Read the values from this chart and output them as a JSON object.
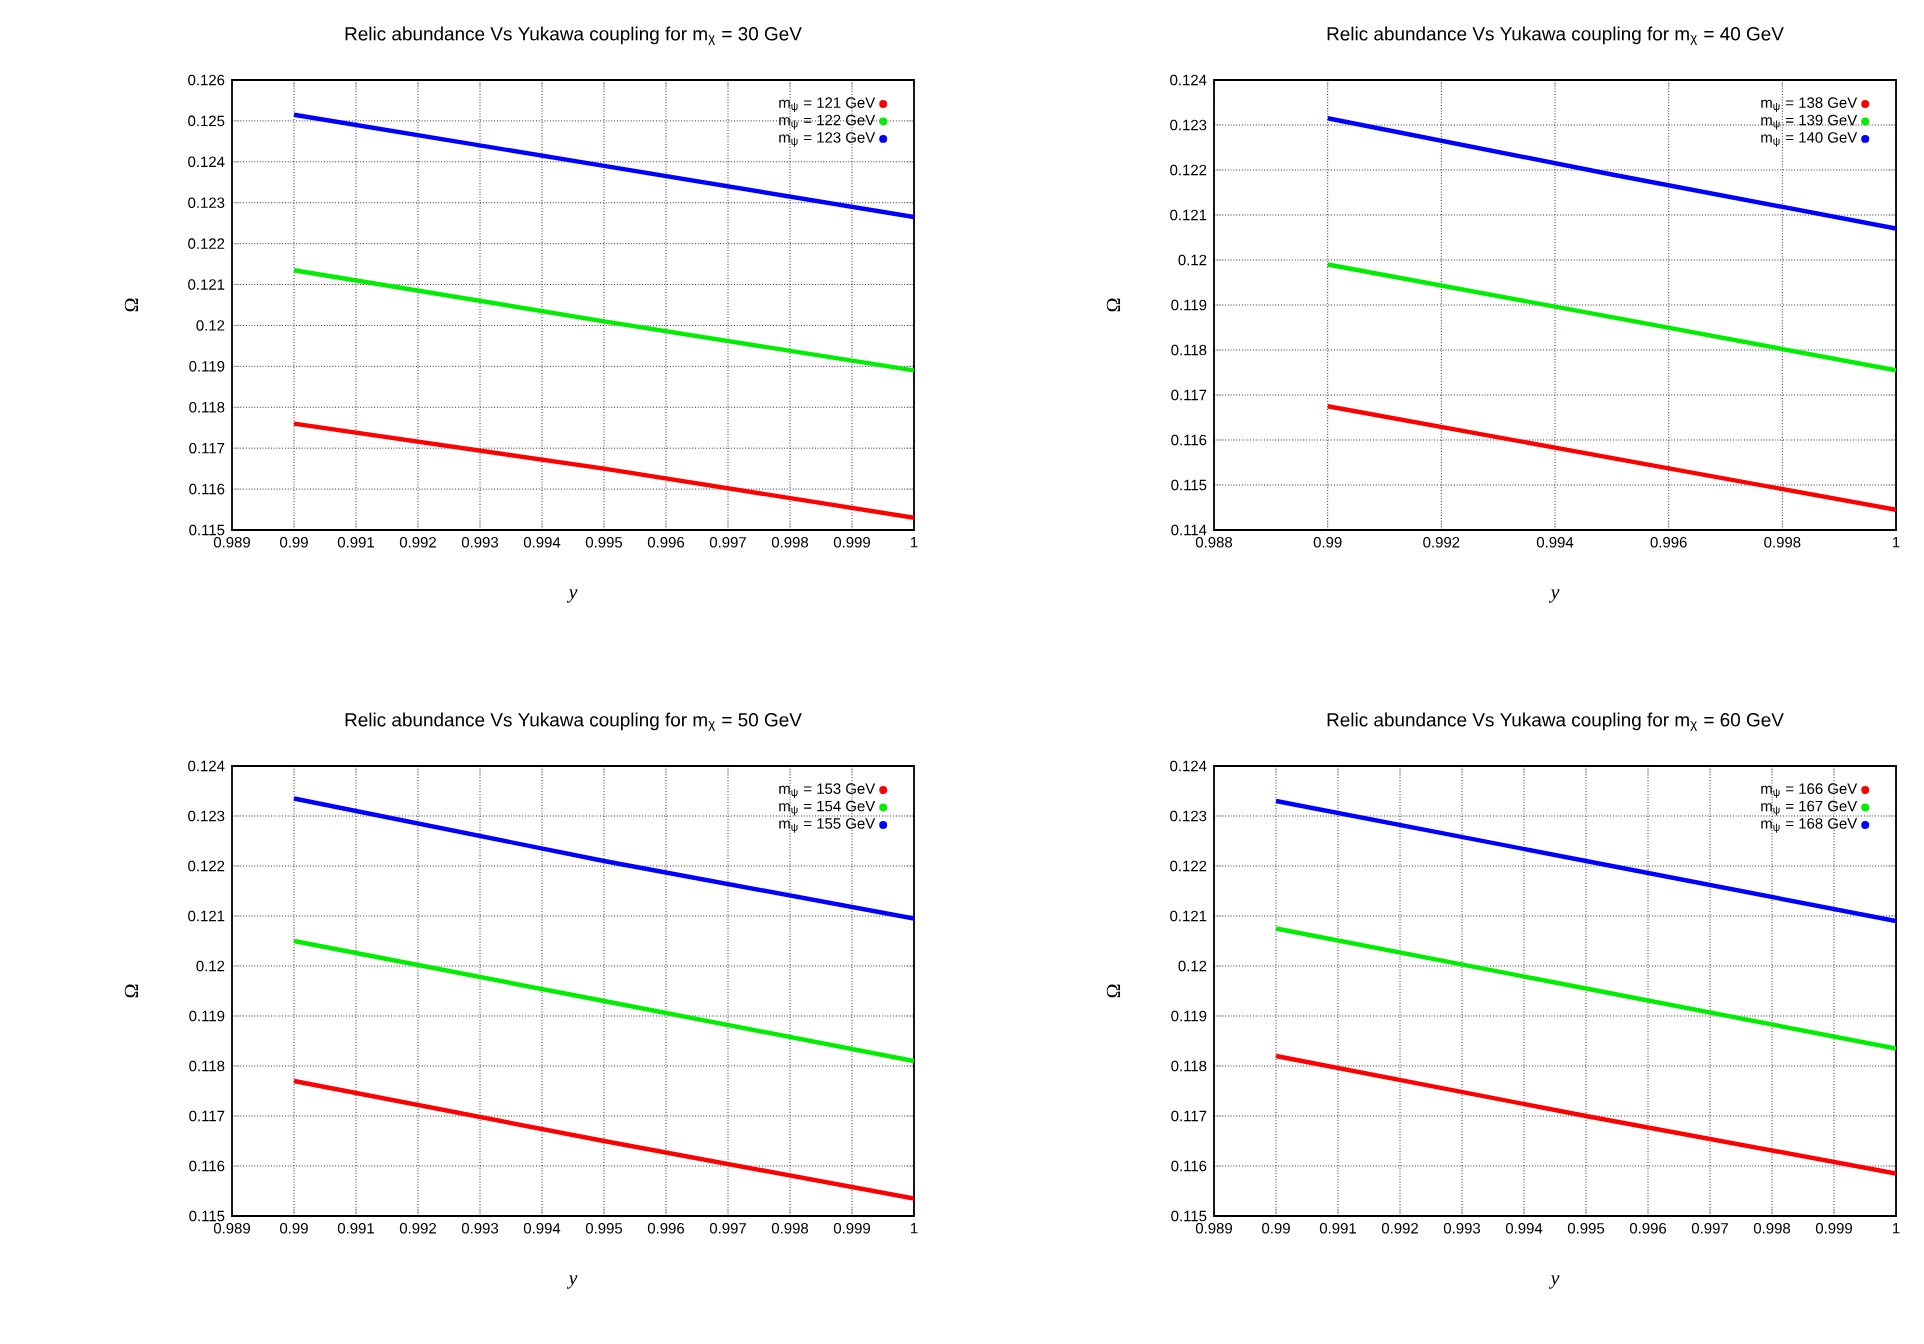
{
  "chart_data": [
    {
      "type": "line",
      "title": "Relic abundance Vs Yukawa coupling for m$_{χ}$ = 30 GeV",
      "xlabel": "y",
      "ylabel": "Ω",
      "x": [
        0.99,
        0.995,
        1
      ],
      "xlim": [
        0.989,
        1
      ],
      "xticks": [
        0.989,
        0.99,
        0.991,
        0.992,
        0.993,
        0.994,
        0.995,
        0.996,
        0.997,
        0.998,
        0.999,
        1
      ],
      "ylim": [
        0.115,
        0.126
      ],
      "yticks": [
        0.115,
        0.116,
        0.117,
        0.118,
        0.119,
        0.12,
        0.121,
        0.122,
        0.123,
        0.124,
        0.125,
        0.126
      ],
      "grid": true,
      "legend": "top right",
      "series": [
        {
          "name": "m$_{ψ}$ = 121 GeV",
          "color": "#ff0000",
          "values": [
            0.1176,
            0.1165,
            0.1153
          ]
        },
        {
          "name": "m$_{ψ}$ = 122 GeV",
          "color": "#00ee00",
          "values": [
            0.12135,
            0.1201,
            0.1189
          ]
        },
        {
          "name": "m$_{ψ}$ = 123 GeV",
          "color": "#0000ff",
          "values": [
            0.12515,
            0.1239,
            0.12265
          ]
        }
      ]
    },
    {
      "type": "line",
      "title": "Relic abundance Vs Yukawa coupling for m$_{χ}$ = 40 GeV",
      "xlabel": "y",
      "ylabel": "Ω",
      "x": [
        0.99,
        0.995,
        1
      ],
      "xlim": [
        0.988,
        1
      ],
      "xticks": [
        0.988,
        0.99,
        0.992,
        0.994,
        0.996,
        0.998,
        1
      ],
      "ylim": [
        0.114,
        0.124
      ],
      "yticks": [
        0.114,
        0.115,
        0.116,
        0.117,
        0.118,
        0.119,
        0.12,
        0.121,
        0.122,
        0.123,
        0.124
      ],
      "grid": true,
      "legend": "top right",
      "series": [
        {
          "name": "m$_{ψ}$ = 138 GeV",
          "color": "#ff0000",
          "values": [
            0.11675,
            0.1156,
            0.11445
          ]
        },
        {
          "name": "m$_{ψ}$ = 139 GeV",
          "color": "#00ee00",
          "values": [
            0.1199,
            0.11873,
            0.11755
          ]
        },
        {
          "name": "m$_{ψ}$ = 140 GeV",
          "color": "#0000ff",
          "values": [
            0.12315,
            0.1219,
            0.1207
          ]
        }
      ]
    },
    {
      "type": "line",
      "title": "Relic abundance Vs Yukawa coupling for m$_{χ}$ = 50 GeV",
      "xlabel": "y",
      "ylabel": "Ω",
      "x": [
        0.99,
        0.995,
        1
      ],
      "xlim": [
        0.989,
        1
      ],
      "xticks": [
        0.989,
        0.99,
        0.991,
        0.992,
        0.993,
        0.994,
        0.995,
        0.996,
        0.997,
        0.998,
        0.999,
        1
      ],
      "ylim": [
        0.115,
        0.124
      ],
      "yticks": [
        0.115,
        0.116,
        0.117,
        0.118,
        0.119,
        0.12,
        0.121,
        0.122,
        0.123,
        0.124
      ],
      "grid": true,
      "legend": "top right",
      "series": [
        {
          "name": "m$_{ψ}$ = 153 GeV",
          "color": "#ff0000",
          "values": [
            0.1177,
            0.1165,
            0.11535
          ]
        },
        {
          "name": "m$_{ψ}$ = 154 GeV",
          "color": "#00ee00",
          "values": [
            0.1205,
            0.1193,
            0.1181
          ]
        },
        {
          "name": "m$_{ψ}$ = 155 GeV",
          "color": "#0000ff",
          "values": [
            0.12335,
            0.1221,
            0.12095
          ]
        }
      ]
    },
    {
      "type": "line",
      "title": "Relic abundance Vs Yukawa coupling for m$_{χ}$ = 60 GeV",
      "xlabel": "y",
      "ylabel": "Ω",
      "x": [
        0.99,
        0.995,
        1
      ],
      "xlim": [
        0.989,
        1
      ],
      "xticks": [
        0.989,
        0.99,
        0.991,
        0.992,
        0.993,
        0.994,
        0.995,
        0.996,
        0.997,
        0.998,
        0.999,
        1
      ],
      "ylim": [
        0.115,
        0.124
      ],
      "yticks": [
        0.115,
        0.116,
        0.117,
        0.118,
        0.119,
        0.12,
        0.121,
        0.122,
        0.123,
        0.124
      ],
      "grid": true,
      "legend": "top right",
      "series": [
        {
          "name": "m$_{ψ}$ = 166 GeV",
          "color": "#ff0000",
          "values": [
            0.1182,
            0.117,
            0.11585
          ]
        },
        {
          "name": "m$_{ψ}$ = 167 GeV",
          "color": "#00ee00",
          "values": [
            0.12075,
            0.11955,
            0.11835
          ]
        },
        {
          "name": "m$_{ψ}$ = 168 GeV",
          "color": "#0000ff",
          "values": [
            0.1233,
            0.1221,
            0.1209
          ]
        }
      ]
    }
  ]
}
